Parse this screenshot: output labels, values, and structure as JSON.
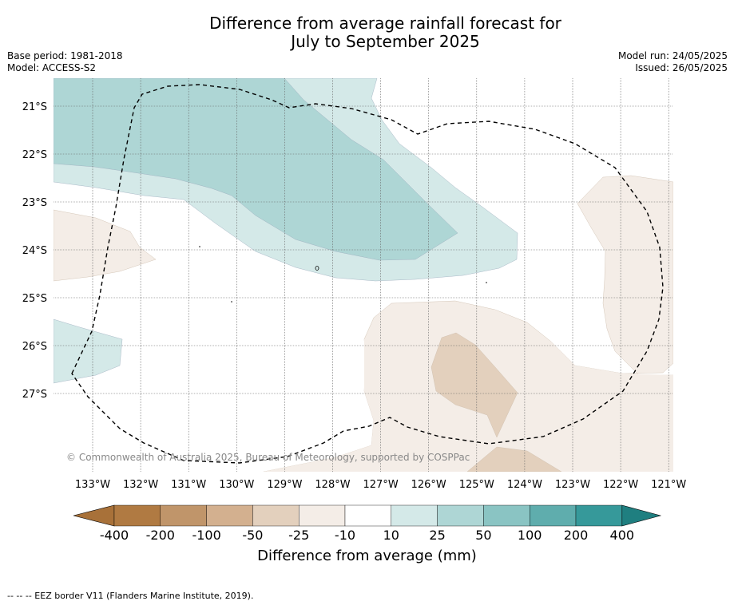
{
  "header": {
    "title_line1": "Difference from average rainfall forecast for",
    "title_line2": "July to September 2025",
    "base_period": "Base period: 1981-2018",
    "model": "Model: ACCESS-S2",
    "model_run": "Model run: 24/05/2025",
    "issued": "Issued: 26/05/2025"
  },
  "map": {
    "latitude_labels": [
      "21°S",
      "22°S",
      "23°S",
      "24°S",
      "25°S",
      "26°S",
      "27°S"
    ],
    "longitude_labels": [
      "133°W",
      "132°W",
      "131°W",
      "130°W",
      "129°W",
      "128°W",
      "127°W",
      "126°W",
      "125°W",
      "124°W",
      "123°W",
      "122°W",
      "121°W"
    ],
    "copyright": "© Commonwealth of Australia 2025, Bureau of Meteorology, supported by COSPPac",
    "border_style": "dashed"
  },
  "colorbar": {
    "title": "Difference from average (mm)",
    "tick_labels": [
      "-400",
      "-200",
      "-100",
      "-50",
      "-25",
      "-10",
      "10",
      "25",
      "50",
      "100",
      "200",
      "400"
    ],
    "colors": [
      "#a87139",
      "#b07a42",
      "#c0956a",
      "#d3b08f",
      "#e3d0bd",
      "#f4ede7",
      "#ffffff",
      "#d4e9e8",
      "#aed6d5",
      "#8ac4c3",
      "#5fadad",
      "#36999a",
      "#1f7f80"
    ]
  },
  "footnote": "-- -- -- EEZ border V11 (Flanders Marine Institute, 2019)."
}
